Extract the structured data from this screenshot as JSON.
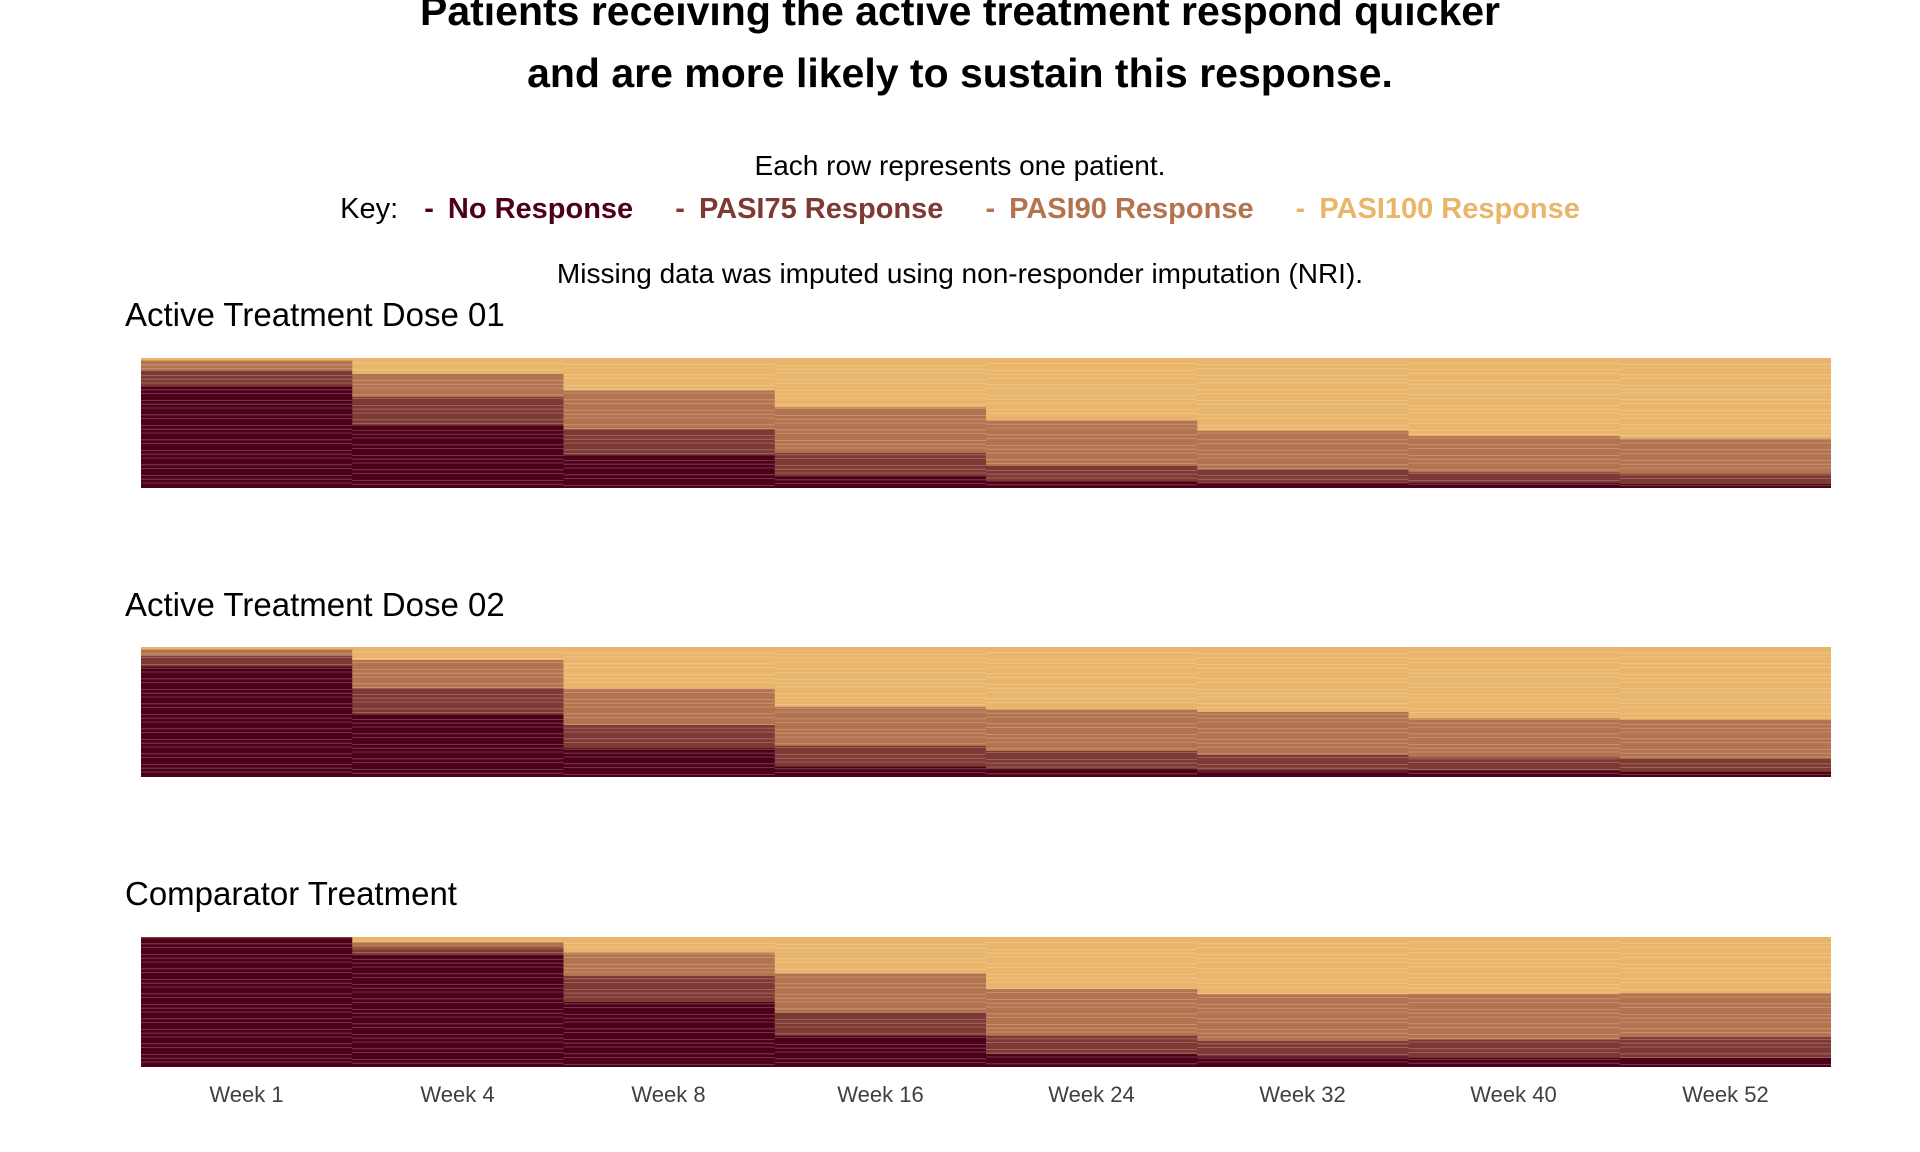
{
  "header": {
    "title_line1": "Patients receiving the active treatment respond quicker",
    "title_line2": "and are more likely to sustain this response.",
    "subtitle": "Each row represents one patient.",
    "key_label": "Key:",
    "missing_note": "Missing data was imputed using non-responder imputation (NRI)."
  },
  "legend": [
    {
      "dash": "-",
      "label": "No Response",
      "color": "#4e0019"
    },
    {
      "dash": "-",
      "label": "PASI75 Response",
      "color": "#7d3933"
    },
    {
      "dash": "-",
      "label": "PASI90 Response",
      "color": "#b2734e"
    },
    {
      "dash": "-",
      "label": "PASI100 Response",
      "color": "#e8b56a"
    }
  ],
  "chart_data": {
    "type": "heatmap",
    "title": "Patients receiving the active treatment respond quicker and are more likely to sustain this response.",
    "subtitle": "Each row represents one patient.",
    "x_categories": [
      "Week 1",
      "Week 4",
      "Week 8",
      "Week 16",
      "Week 24",
      "Week 32",
      "Week 40",
      "Week 52"
    ],
    "response_levels": [
      "No Response",
      "PASI75 Response",
      "PASI90 Response",
      "PASI100 Response"
    ],
    "colors": {
      "No Response": "#4e0019",
      "PASI75 Response": "#7d3933",
      "PASI90 Response": "#b2734e",
      "PASI100 Response": "#e8b56a"
    },
    "panels": [
      {
        "name": "Active Treatment Dose 01",
        "approx_share_by_week": {
          "No Response": [
            0.78,
            0.48,
            0.25,
            0.09,
            0.05,
            0.04,
            0.04,
            0.03
          ],
          "PASI75 Response": [
            0.12,
            0.22,
            0.2,
            0.18,
            0.12,
            0.1,
            0.08,
            0.08
          ],
          "PASI90 Response": [
            0.08,
            0.18,
            0.3,
            0.35,
            0.35,
            0.3,
            0.28,
            0.27
          ],
          "PASI100 Response": [
            0.02,
            0.12,
            0.25,
            0.38,
            0.48,
            0.56,
            0.6,
            0.62
          ]
        }
      },
      {
        "name": "Active Treatment Dose 02",
        "approx_share_by_week": {
          "No Response": [
            0.85,
            0.48,
            0.22,
            0.08,
            0.06,
            0.05,
            0.05,
            0.04
          ],
          "PASI75 Response": [
            0.08,
            0.2,
            0.18,
            0.16,
            0.14,
            0.12,
            0.1,
            0.1
          ],
          "PASI90 Response": [
            0.05,
            0.22,
            0.28,
            0.3,
            0.32,
            0.33,
            0.3,
            0.3
          ],
          "PASI100 Response": [
            0.02,
            0.1,
            0.32,
            0.46,
            0.48,
            0.5,
            0.55,
            0.56
          ]
        }
      },
      {
        "name": "Comparator Treatment",
        "approx_share_by_week": {
          "No Response": [
            0.99,
            0.86,
            0.5,
            0.24,
            0.1,
            0.08,
            0.07,
            0.07
          ],
          "PASI75 Response": [
            0.01,
            0.06,
            0.2,
            0.18,
            0.14,
            0.12,
            0.14,
            0.16
          ],
          "PASI90 Response": [
            0.0,
            0.04,
            0.18,
            0.3,
            0.36,
            0.36,
            0.35,
            0.34
          ],
          "PASI100 Response": [
            0.0,
            0.04,
            0.12,
            0.28,
            0.4,
            0.44,
            0.44,
            0.43
          ]
        }
      }
    ]
  }
}
